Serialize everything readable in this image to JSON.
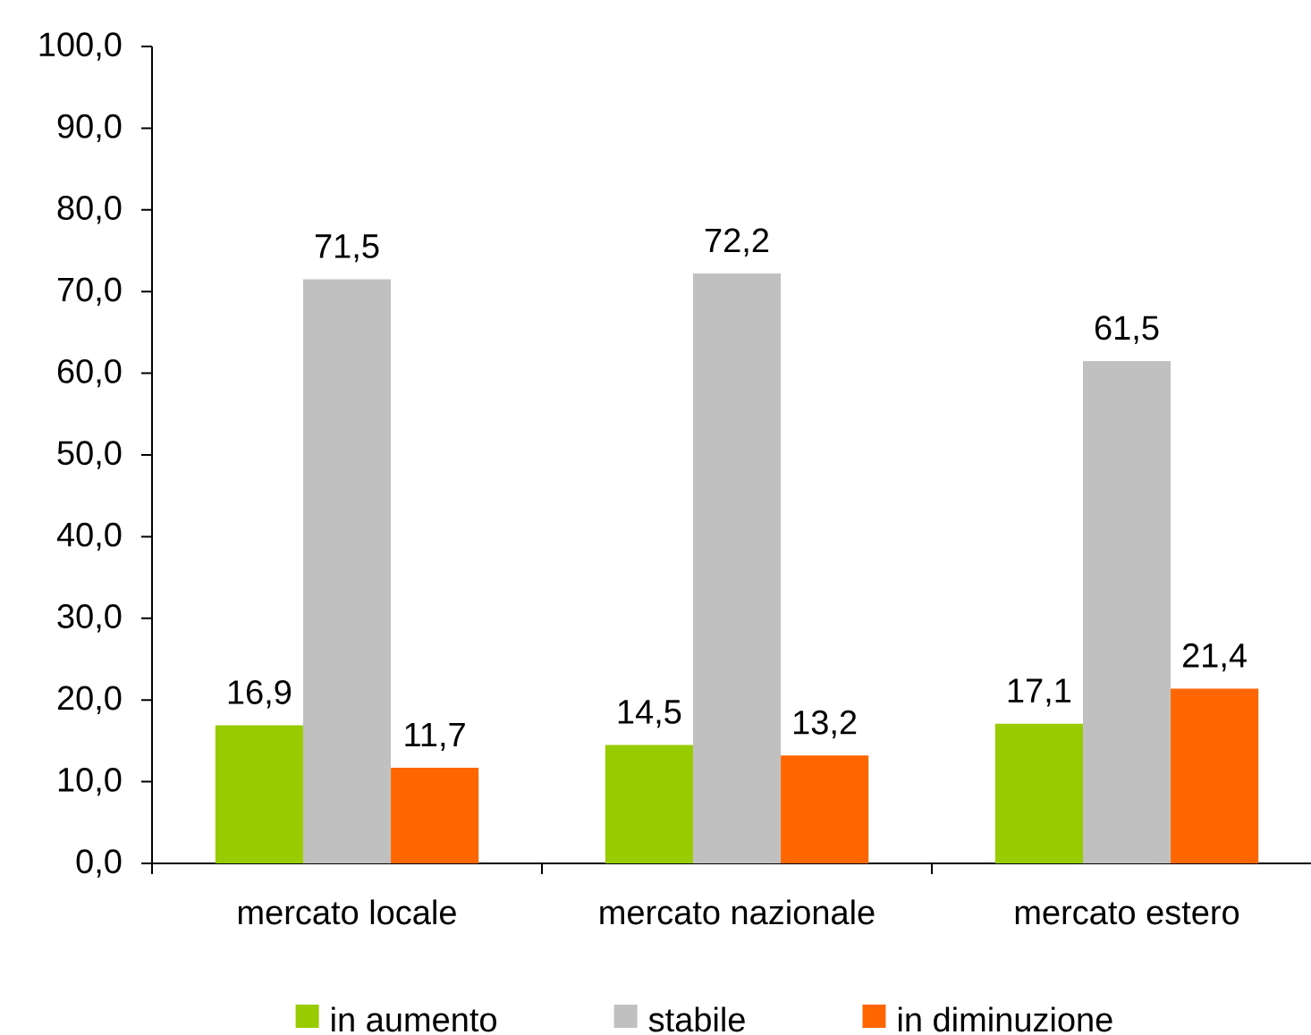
{
  "chart_data": {
    "type": "bar",
    "categories": [
      "mercato locale",
      "mercato nazionale",
      "mercato estero"
    ],
    "series": [
      {
        "name": "in aumento",
        "color": "#99cc00",
        "values": [
          16.9,
          14.5,
          17.1
        ],
        "value_labels": [
          "16,9",
          "14,5",
          "17,1"
        ]
      },
      {
        "name": "stabile",
        "color": "#c0c0c0",
        "values": [
          71.5,
          72.2,
          61.5
        ],
        "value_labels": [
          "71,5",
          "72,2",
          "61,5"
        ]
      },
      {
        "name": "in diminuzione",
        "color": "#ff6600",
        "values": [
          11.7,
          13.2,
          21.4
        ],
        "value_labels": [
          "11,7",
          "13,2",
          "21,4"
        ]
      }
    ],
    "ylim": [
      0,
      100
    ],
    "yticks": [
      {
        "value": 0,
        "label": "0,0"
      },
      {
        "value": 10,
        "label": "10,0"
      },
      {
        "value": 20,
        "label": "20,0"
      },
      {
        "value": 30,
        "label": "30,0"
      },
      {
        "value": 40,
        "label": "40,0"
      },
      {
        "value": 50,
        "label": "50,0"
      },
      {
        "value": 60,
        "label": "60,0"
      },
      {
        "value": 70,
        "label": "70,0"
      },
      {
        "value": 80,
        "label": "80,0"
      },
      {
        "value": 90,
        "label": "90,0"
      },
      {
        "value": 100,
        "label": "100,0"
      }
    ],
    "legend": "bottom"
  }
}
